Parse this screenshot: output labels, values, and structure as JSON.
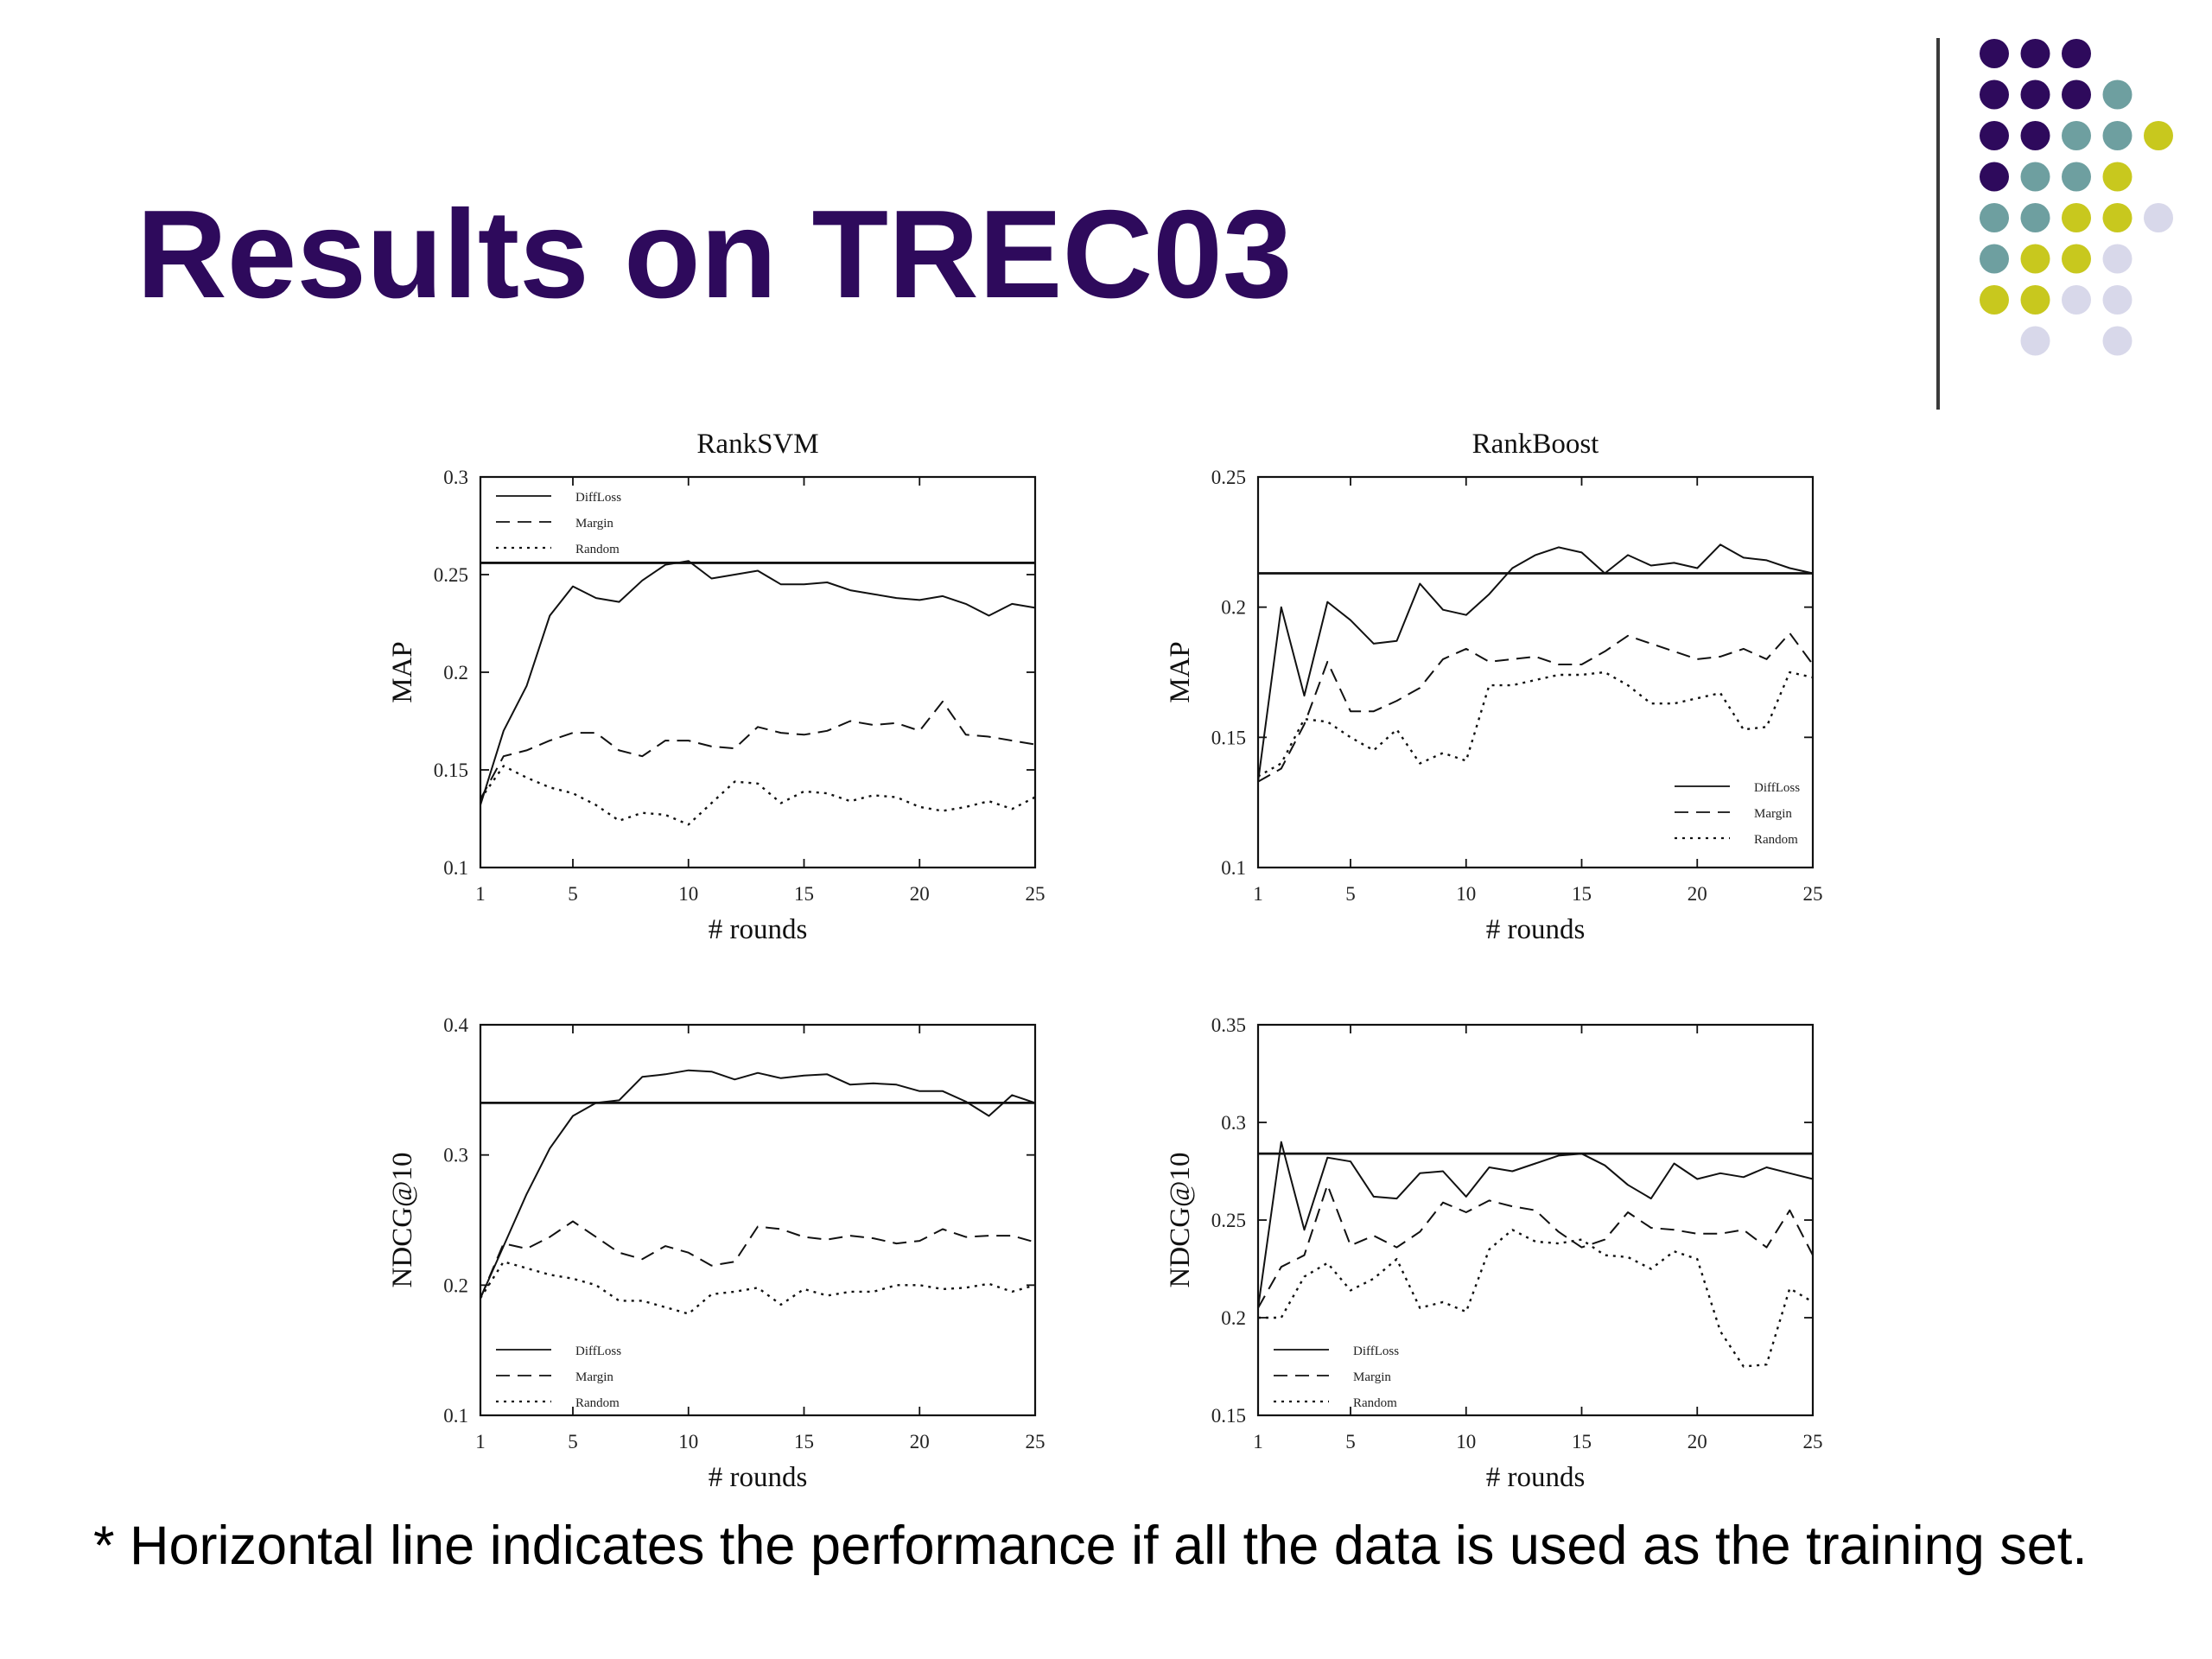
{
  "slide": {
    "title": "Results on TREC03",
    "footnote": "* Horizontal line indicates the performance if all the data is used as the training set."
  },
  "decoration": {
    "dot_colors": {
      "purple": "#2e0a5c",
      "teal": "#6e9fa0",
      "yellow": "#c8c81e",
      "lavender": "#d8d8ea"
    },
    "dot_rows": [
      [
        "purple",
        "purple",
        "purple",
        null,
        null
      ],
      [
        "purple",
        "purple",
        "purple",
        "teal",
        null
      ],
      [
        "purple",
        "purple",
        "teal",
        "teal",
        "yellow"
      ],
      [
        "purple",
        "teal",
        "teal",
        "yellow",
        null
      ],
      [
        "teal",
        "teal",
        "yellow",
        "yellow",
        "lavender"
      ],
      [
        "teal",
        "yellow",
        "yellow",
        "lavender",
        null
      ],
      [
        "yellow",
        "yellow",
        "lavender",
        "lavender",
        null
      ],
      [
        null,
        "lavender",
        null,
        "lavender",
        null
      ]
    ]
  },
  "chart_data": [
    {
      "id": "ranksvm-map",
      "type": "line",
      "title": "RankSVM",
      "xlabel": "# rounds",
      "ylabel": "MAP",
      "xlim": [
        1,
        25
      ],
      "ylim": [
        0.1,
        0.3
      ],
      "xticks": [
        1,
        5,
        10,
        15,
        20,
        25
      ],
      "yticks": [
        0.1,
        0.15,
        0.2,
        0.25,
        0.3
      ],
      "ytick_labels": [
        "0.1",
        "0.15",
        "0.2",
        "0.25",
        "0.3"
      ],
      "legend_position": "top-left",
      "baseline": 0.256,
      "x": [
        1,
        2,
        3,
        4,
        5,
        6,
        7,
        8,
        9,
        10,
        11,
        12,
        13,
        14,
        15,
        16,
        17,
        18,
        19,
        20,
        21,
        22,
        23,
        24,
        25
      ],
      "series": [
        {
          "name": "DiffLoss",
          "style": "solid",
          "values": [
            0.132,
            0.17,
            0.193,
            0.229,
            0.244,
            0.238,
            0.236,
            0.247,
            0.255,
            0.257,
            0.248,
            0.25,
            0.252,
            0.245,
            0.245,
            0.246,
            0.242,
            0.24,
            0.238,
            0.237,
            0.239,
            0.235,
            0.229,
            0.235,
            0.233
          ]
        },
        {
          "name": "Margin",
          "style": "dashed",
          "values": [
            0.135,
            0.157,
            0.16,
            0.165,
            0.169,
            0.169,
            0.16,
            0.157,
            0.165,
            0.165,
            0.162,
            0.161,
            0.172,
            0.169,
            0.168,
            0.17,
            0.175,
            0.173,
            0.174,
            0.17,
            0.185,
            0.168,
            0.167,
            0.165,
            0.163
          ]
        },
        {
          "name": "Random",
          "style": "dotted",
          "values": [
            0.135,
            0.152,
            0.146,
            0.141,
            0.138,
            0.132,
            0.124,
            0.128,
            0.127,
            0.122,
            0.133,
            0.144,
            0.143,
            0.133,
            0.139,
            0.138,
            0.134,
            0.137,
            0.136,
            0.131,
            0.129,
            0.131,
            0.134,
            0.13,
            0.136
          ]
        }
      ]
    },
    {
      "id": "rankboost-map",
      "type": "line",
      "title": "RankBoost",
      "xlabel": "# rounds",
      "ylabel": "MAP",
      "xlim": [
        1,
        25
      ],
      "ylim": [
        0.1,
        0.25
      ],
      "xticks": [
        1,
        5,
        10,
        15,
        20,
        25
      ],
      "yticks": [
        0.1,
        0.15,
        0.2,
        0.25
      ],
      "ytick_labels": [
        "0.1",
        "0.15",
        "0.2",
        "0.25"
      ],
      "legend_position": "bottom-right",
      "baseline": 0.213,
      "x": [
        1,
        2,
        3,
        4,
        5,
        6,
        7,
        8,
        9,
        10,
        11,
        12,
        13,
        14,
        15,
        16,
        17,
        18,
        19,
        20,
        21,
        22,
        23,
        24,
        25
      ],
      "series": [
        {
          "name": "DiffLoss",
          "style": "solid",
          "values": [
            0.133,
            0.2,
            0.166,
            0.202,
            0.195,
            0.186,
            0.187,
            0.209,
            0.199,
            0.197,
            0.205,
            0.215,
            0.22,
            0.223,
            0.221,
            0.213,
            0.22,
            0.216,
            0.217,
            0.215,
            0.224,
            0.219,
            0.218,
            0.215,
            0.213
          ]
        },
        {
          "name": "Margin",
          "style": "dashed",
          "values": [
            0.133,
            0.138,
            0.155,
            0.179,
            0.16,
            0.16,
            0.164,
            0.169,
            0.18,
            0.184,
            0.179,
            0.18,
            0.181,
            0.178,
            0.178,
            0.183,
            0.189,
            0.186,
            0.183,
            0.18,
            0.181,
            0.184,
            0.18,
            0.19,
            0.178
          ]
        },
        {
          "name": "Random",
          "style": "dotted",
          "values": [
            0.135,
            0.14,
            0.157,
            0.156,
            0.15,
            0.145,
            0.153,
            0.14,
            0.144,
            0.141,
            0.17,
            0.17,
            0.172,
            0.174,
            0.174,
            0.175,
            0.17,
            0.163,
            0.163,
            0.165,
            0.167,
            0.153,
            0.154,
            0.175,
            0.173
          ]
        }
      ]
    },
    {
      "id": "ranksvm-ndcg",
      "type": "line",
      "title": "",
      "xlabel": "# rounds",
      "ylabel": "NDCG@10",
      "xlim": [
        1,
        25
      ],
      "ylim": [
        0.1,
        0.4
      ],
      "xticks": [
        1,
        5,
        10,
        15,
        20,
        25
      ],
      "yticks": [
        0.1,
        0.2,
        0.3,
        0.4
      ],
      "ytick_labels": [
        "0.1",
        "0.2",
        "0.3",
        "0.4"
      ],
      "legend_position": "bottom-left",
      "baseline": 0.34,
      "x": [
        1,
        2,
        3,
        4,
        5,
        6,
        7,
        8,
        9,
        10,
        11,
        12,
        13,
        14,
        15,
        16,
        17,
        18,
        19,
        20,
        21,
        22,
        23,
        24,
        25
      ],
      "series": [
        {
          "name": "DiffLoss",
          "style": "solid",
          "values": [
            0.19,
            0.23,
            0.27,
            0.305,
            0.33,
            0.34,
            0.342,
            0.36,
            0.362,
            0.365,
            0.364,
            0.358,
            0.363,
            0.359,
            0.361,
            0.362,
            0.354,
            0.355,
            0.354,
            0.349,
            0.349,
            0.341,
            0.33,
            0.346,
            0.34
          ]
        },
        {
          "name": "Margin",
          "style": "dashed",
          "values": [
            0.19,
            0.232,
            0.228,
            0.237,
            0.249,
            0.237,
            0.225,
            0.22,
            0.23,
            0.225,
            0.215,
            0.218,
            0.245,
            0.243,
            0.237,
            0.235,
            0.238,
            0.236,
            0.232,
            0.234,
            0.243,
            0.237,
            0.238,
            0.238,
            0.233
          ]
        },
        {
          "name": "Random",
          "style": "dotted",
          "values": [
            0.19,
            0.218,
            0.213,
            0.208,
            0.205,
            0.2,
            0.188,
            0.188,
            0.183,
            0.178,
            0.193,
            0.195,
            0.198,
            0.185,
            0.197,
            0.192,
            0.195,
            0.195,
            0.2,
            0.2,
            0.197,
            0.198,
            0.201,
            0.195,
            0.2
          ]
        }
      ]
    },
    {
      "id": "rankboost-ndcg",
      "type": "line",
      "title": "",
      "xlabel": "# rounds",
      "ylabel": "NDCG@10",
      "xlim": [
        1,
        25
      ],
      "ylim": [
        0.15,
        0.35
      ],
      "xticks": [
        1,
        5,
        10,
        15,
        20,
        25
      ],
      "yticks": [
        0.15,
        0.2,
        0.25,
        0.3,
        0.35
      ],
      "ytick_labels": [
        "0.15",
        "0.2",
        "0.25",
        "0.3",
        "0.35"
      ],
      "legend_position": "bottom-left",
      "baseline": 0.284,
      "x": [
        1,
        2,
        3,
        4,
        5,
        6,
        7,
        8,
        9,
        10,
        11,
        12,
        13,
        14,
        15,
        16,
        17,
        18,
        19,
        20,
        21,
        22,
        23,
        24,
        25
      ],
      "series": [
        {
          "name": "DiffLoss",
          "style": "solid",
          "values": [
            0.205,
            0.29,
            0.245,
            0.282,
            0.28,
            0.262,
            0.261,
            0.274,
            0.275,
            0.262,
            0.277,
            0.275,
            0.279,
            0.283,
            0.284,
            0.278,
            0.268,
            0.261,
            0.279,
            0.271,
            0.274,
            0.272,
            0.277,
            0.274,
            0.271
          ]
        },
        {
          "name": "Margin",
          "style": "dashed",
          "values": [
            0.205,
            0.226,
            0.232,
            0.268,
            0.237,
            0.242,
            0.236,
            0.244,
            0.259,
            0.254,
            0.26,
            0.257,
            0.255,
            0.244,
            0.236,
            0.24,
            0.254,
            0.246,
            0.245,
            0.243,
            0.243,
            0.245,
            0.236,
            0.255,
            0.232
          ]
        },
        {
          "name": "Random",
          "style": "dotted",
          "values": [
            0.2,
            0.2,
            0.221,
            0.228,
            0.214,
            0.22,
            0.23,
            0.205,
            0.208,
            0.203,
            0.235,
            0.245,
            0.239,
            0.238,
            0.24,
            0.232,
            0.231,
            0.225,
            0.234,
            0.23,
            0.193,
            0.175,
            0.176,
            0.215,
            0.208
          ]
        }
      ]
    }
  ]
}
